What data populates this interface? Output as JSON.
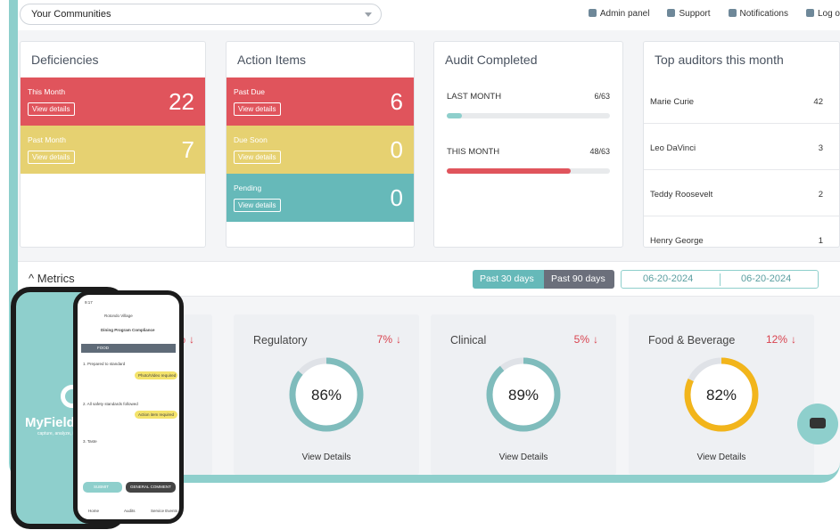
{
  "topbar": {
    "community": "Your Communities",
    "links": [
      "Admin panel",
      "Support",
      "Notifications",
      "Log o"
    ]
  },
  "deficiencies": {
    "title": "Deficiencies",
    "rows": [
      {
        "label": "This Month",
        "action": "View details",
        "value": "22"
      },
      {
        "label": "Past Month",
        "action": "View details",
        "value": "7"
      }
    ]
  },
  "action_items": {
    "title": "Action Items",
    "rows": [
      {
        "label": "Past Due",
        "action": "View details",
        "value": "6"
      },
      {
        "label": "Due Soon",
        "action": "View details",
        "value": "0"
      },
      {
        "label": "Pending",
        "action": "View details",
        "value": "0"
      }
    ]
  },
  "audit": {
    "title": "Audit Completed",
    "rows": [
      {
        "label": "LAST MONTH",
        "value": "6/63",
        "fraction": 0.095,
        "color": "#8ecfcc"
      },
      {
        "label": "THIS MONTH",
        "value": "48/63",
        "fraction": 0.762,
        "color": "#e0545c"
      }
    ]
  },
  "auditors": {
    "title": "Top auditors this month",
    "rows": [
      {
        "name": "Marie Curie",
        "count": "42"
      },
      {
        "name": "Leo DaVinci",
        "count": "3"
      },
      {
        "name": "Teddy Roosevelt",
        "count": "2"
      },
      {
        "name": "Henry George",
        "count": "1"
      }
    ]
  },
  "metrics": {
    "title": "Metrics",
    "range_30": "Past 30 days",
    "range_90": "Past 90 days",
    "date_from": "06-20-2024",
    "date_to": "06-20-2024",
    "first_pct": "%",
    "cards": [
      {
        "label": "Regulatory",
        "change": "7%",
        "score": "86%",
        "fraction": 0.86,
        "color": "#7fbcbc",
        "action": "View Details"
      },
      {
        "label": "Clinical",
        "change": "5%",
        "score": "89%",
        "fraction": 0.89,
        "color": "#7fbcbc",
        "action": "View Details"
      },
      {
        "label": "Food & Beverage",
        "change": "12%",
        "score": "82%",
        "fraction": 0.82,
        "color": "#f2b51b",
        "action": "View Details"
      }
    ]
  },
  "phone": {
    "brand": "MyField",
    "tagline": "capture, analyze, i",
    "time": "9:17",
    "location": "Rotondo Village",
    "page_title": "Dining Program Compliance",
    "section": "FOOD",
    "q1": "1. Prepared to standard",
    "q1_pill": "Photo/Video required",
    "q2": "2. All safety standards followed",
    "q2_pill": "Action item required",
    "q3": "3. Taste",
    "submit": "SUBMIT",
    "comment": "GENERAL COMMENT",
    "tabs": [
      "Home",
      "Audits",
      "Service Events"
    ]
  }
}
